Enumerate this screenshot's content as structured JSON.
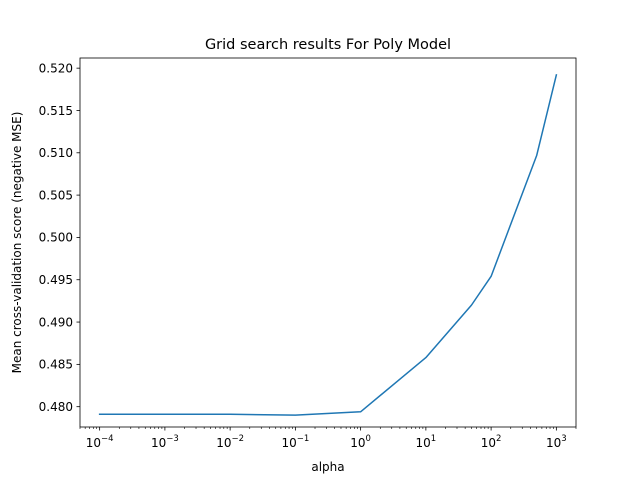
{
  "chart_data": {
    "type": "line",
    "title": "Grid search results For Poly Model",
    "xlabel": "alpha",
    "ylabel": "Mean cross-validation score (negative MSE)",
    "xscale": "log",
    "grid": false,
    "legend": "none",
    "xlim": [
      5e-05,
      2000
    ],
    "ylim": [
      0.4776,
      0.5212
    ],
    "x_ticks": [
      {
        "value": 0.0001,
        "base": "10",
        "exp": "−4"
      },
      {
        "value": 0.001,
        "base": "10",
        "exp": "−3"
      },
      {
        "value": 0.01,
        "base": "10",
        "exp": "−2"
      },
      {
        "value": 0.1,
        "base": "10",
        "exp": "−1"
      },
      {
        "value": 1,
        "base": "10",
        "exp": "0"
      },
      {
        "value": 10,
        "base": "10",
        "exp": "1"
      },
      {
        "value": 100,
        "base": "10",
        "exp": "2"
      },
      {
        "value": 1000,
        "base": "10",
        "exp": "3"
      }
    ],
    "y_ticks": [
      {
        "value": 0.48,
        "label": "0.480"
      },
      {
        "value": 0.485,
        "label": "0.485"
      },
      {
        "value": 0.49,
        "label": "0.490"
      },
      {
        "value": 0.495,
        "label": "0.495"
      },
      {
        "value": 0.5,
        "label": "0.500"
      },
      {
        "value": 0.505,
        "label": "0.505"
      },
      {
        "value": 0.51,
        "label": "0.510"
      },
      {
        "value": 0.515,
        "label": "0.515"
      },
      {
        "value": 0.52,
        "label": "0.520"
      }
    ],
    "series": [
      {
        "color": "#1f77b4",
        "x": [
          0.0001,
          0.001,
          0.01,
          0.1,
          1,
          10,
          50,
          100,
          500,
          1000
        ],
        "y": [
          0.4791,
          0.4791,
          0.4791,
          0.479,
          0.4794,
          0.4858,
          0.492,
          0.4954,
          0.5097,
          0.5192
        ]
      }
    ]
  }
}
